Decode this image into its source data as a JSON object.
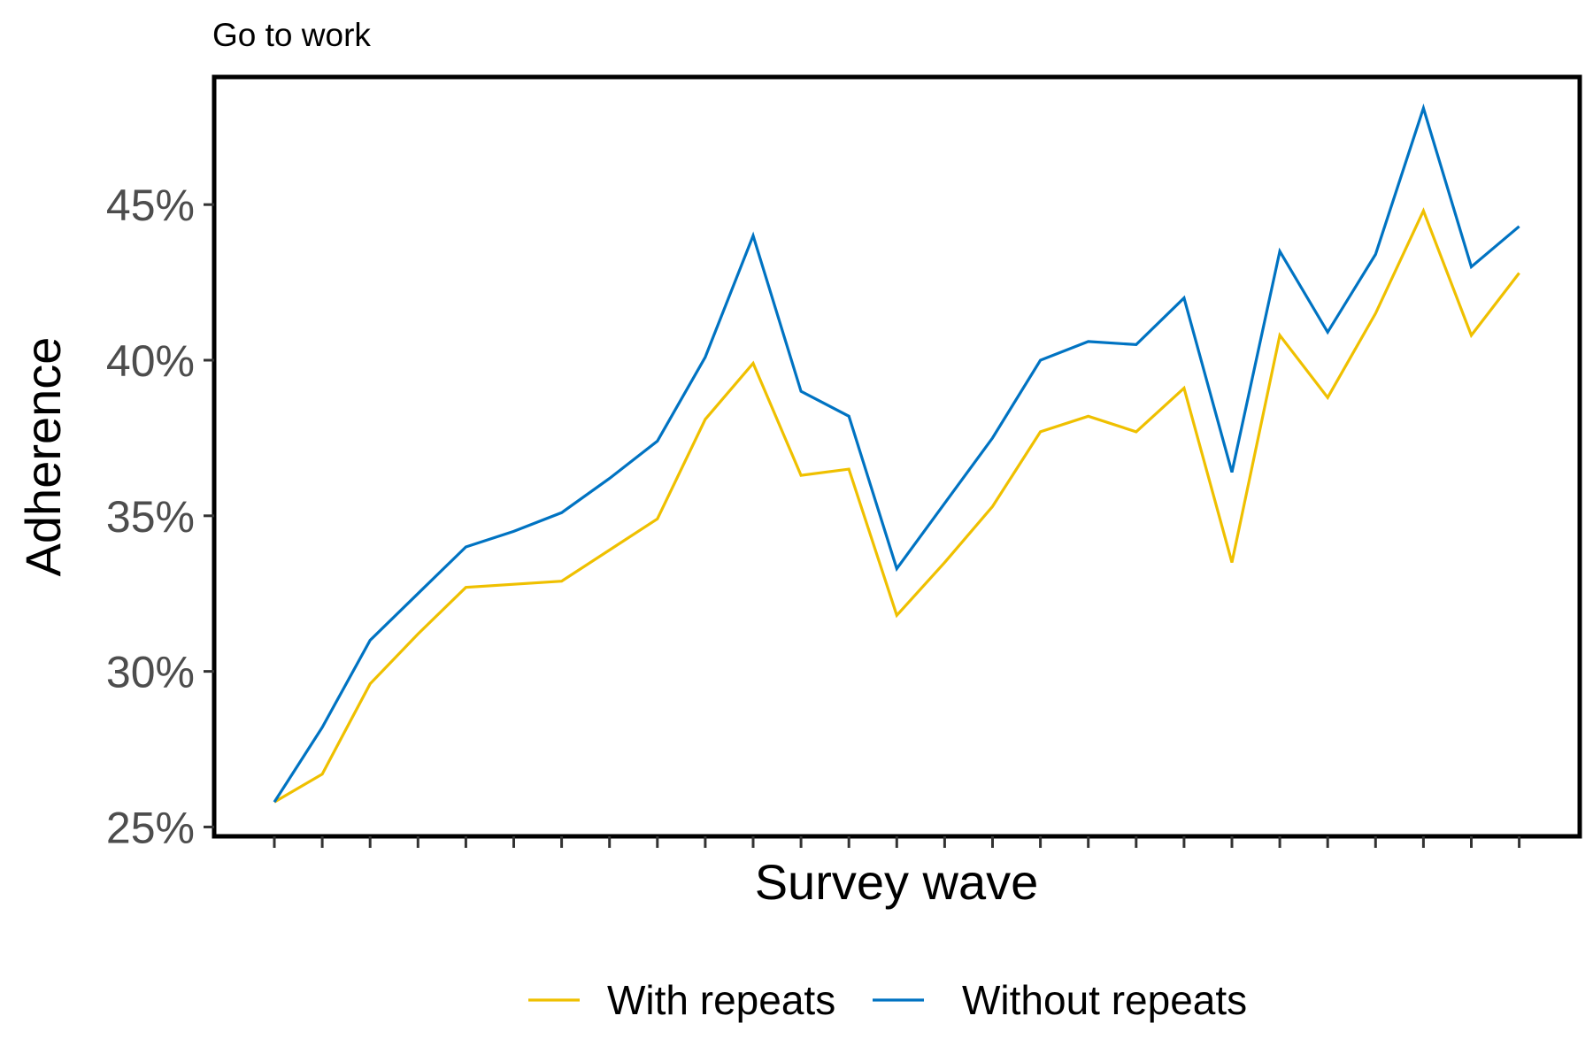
{
  "chart_data": {
    "type": "line",
    "title": "Go to work",
    "xlabel": "Survey wave",
    "ylabel": "Adherence",
    "x": [
      1,
      2,
      3,
      4,
      5,
      6,
      7,
      8,
      9,
      10,
      11,
      12,
      13,
      14,
      15,
      16,
      17,
      18,
      19,
      20,
      21,
      22,
      23,
      24,
      25,
      26,
      27
    ],
    "ylim": [
      24.7,
      49.1
    ],
    "yticks": [
      25,
      30,
      35,
      40,
      45
    ],
    "ytick_labels": [
      "25%",
      "30%",
      "35%",
      "40%",
      "45%"
    ],
    "grid": false,
    "legend_position": "bottom",
    "series": [
      {
        "name": "With repeats",
        "color": "#EFC000",
        "values": [
          25.8,
          26.7,
          29.6,
          31.2,
          32.7,
          32.8,
          32.9,
          33.9,
          34.9,
          38.1,
          39.9,
          36.3,
          36.5,
          31.8,
          33.5,
          35.3,
          37.7,
          38.2,
          37.7,
          39.1,
          33.5,
          40.8,
          38.8,
          41.5,
          44.8,
          40.8,
          42.8
        ]
      },
      {
        "name": "Without repeats",
        "color": "#0073C2",
        "values": [
          25.8,
          28.2,
          31.0,
          32.5,
          34.0,
          34.5,
          35.1,
          36.2,
          37.4,
          40.1,
          44.0,
          39.0,
          38.2,
          33.3,
          35.4,
          37.5,
          40.0,
          40.6,
          40.5,
          42.0,
          36.4,
          43.5,
          40.9,
          43.4,
          48.1,
          43.0,
          44.3
        ]
      }
    ]
  }
}
